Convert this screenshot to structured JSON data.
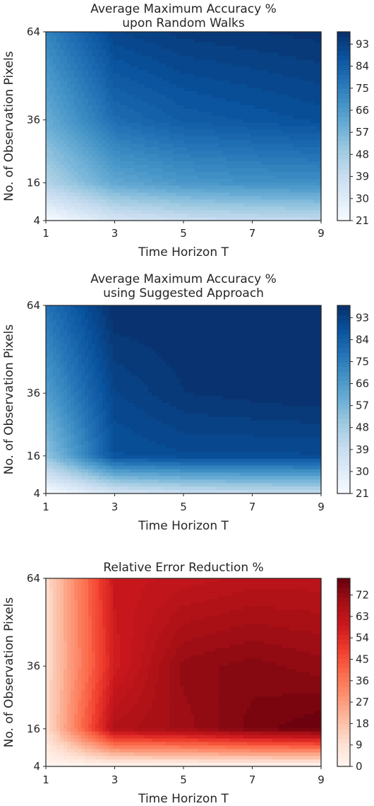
{
  "chart_data": [
    {
      "type": "heatmap",
      "style": "filled-contour",
      "colormap": "Blues",
      "title_lines": [
        "Average Maximum Accuracy %",
        "upon Random Walks"
      ],
      "xlabel": "Time Horizon T",
      "ylabel": "No. of Observation Pixels",
      "x_ticks": [
        "1",
        "3",
        "5",
        "7",
        "9"
      ],
      "y_ticks": [
        "4",
        "16",
        "36",
        "64"
      ],
      "x": [
        1,
        3,
        5,
        7,
        9
      ],
      "y": [
        4,
        16,
        36,
        64
      ],
      "z": [
        [
          21,
          34,
          38,
          40,
          41
        ],
        [
          45,
          62,
          67,
          69,
          70
        ],
        [
          60,
          80,
          85,
          87,
          89
        ],
        [
          73,
          92,
          95,
          96,
          97
        ]
      ],
      "colorbar": {
        "ticks": [
          "21",
          "30",
          "39",
          "48",
          "57",
          "66",
          "75",
          "84",
          "93"
        ],
        "range": [
          21,
          98
        ]
      },
      "colors": {
        "low": "#f7fbff",
        "high": "#08306b"
      }
    },
    {
      "type": "heatmap",
      "style": "filled-contour",
      "colormap": "Blues",
      "title_lines": [
        "Average Maximum Accuracy %",
        "using Suggested Approach"
      ],
      "xlabel": "Time Horizon T",
      "ylabel": "No. of Observation Pixels",
      "x_ticks": [
        "1",
        "3",
        "5",
        "7",
        "9"
      ],
      "y_ticks": [
        "4",
        "16",
        "36",
        "64"
      ],
      "x": [
        1,
        3,
        5,
        7,
        9
      ],
      "y": [
        4,
        16,
        36,
        64
      ],
      "z": [
        [
          21,
          34,
          38,
          40,
          41
        ],
        [
          52,
          88,
          90,
          90,
          90
        ],
        [
          65,
          92,
          96,
          97,
          98
        ],
        [
          78,
          98,
          98,
          98,
          98
        ]
      ],
      "colorbar": {
        "ticks": [
          "21",
          "30",
          "39",
          "48",
          "57",
          "66",
          "75",
          "84",
          "93"
        ],
        "range": [
          21,
          98
        ]
      },
      "colors": {
        "low": "#f7fbff",
        "high": "#08306b"
      }
    },
    {
      "type": "heatmap",
      "style": "filled-contour",
      "colormap": "Reds",
      "title_lines": [
        "Relative Error Reduction %"
      ],
      "xlabel": "Time Horizon T",
      "ylabel": "No. of Observation Pixels",
      "x_ticks": [
        "1",
        "3",
        "5",
        "7",
        "9"
      ],
      "y_ticks": [
        "4",
        "16",
        "36",
        "64"
      ],
      "x": [
        1,
        3,
        5,
        7,
        9
      ],
      "y": [
        4,
        16,
        36,
        64
      ],
      "z": [
        [
          0,
          0,
          0,
          0,
          0
        ],
        [
          10,
          66,
          70,
          76,
          79
        ],
        [
          10,
          58,
          72,
          74,
          72
        ],
        [
          10,
          60,
          62,
          64,
          64
        ]
      ],
      "colorbar": {
        "ticks": [
          "0",
          "9",
          "18",
          "27",
          "36",
          "45",
          "54",
          "63",
          "72"
        ],
        "range": [
          0,
          79
        ]
      },
      "colors": {
        "low": "#fff5f0",
        "high": "#67000d"
      }
    }
  ]
}
